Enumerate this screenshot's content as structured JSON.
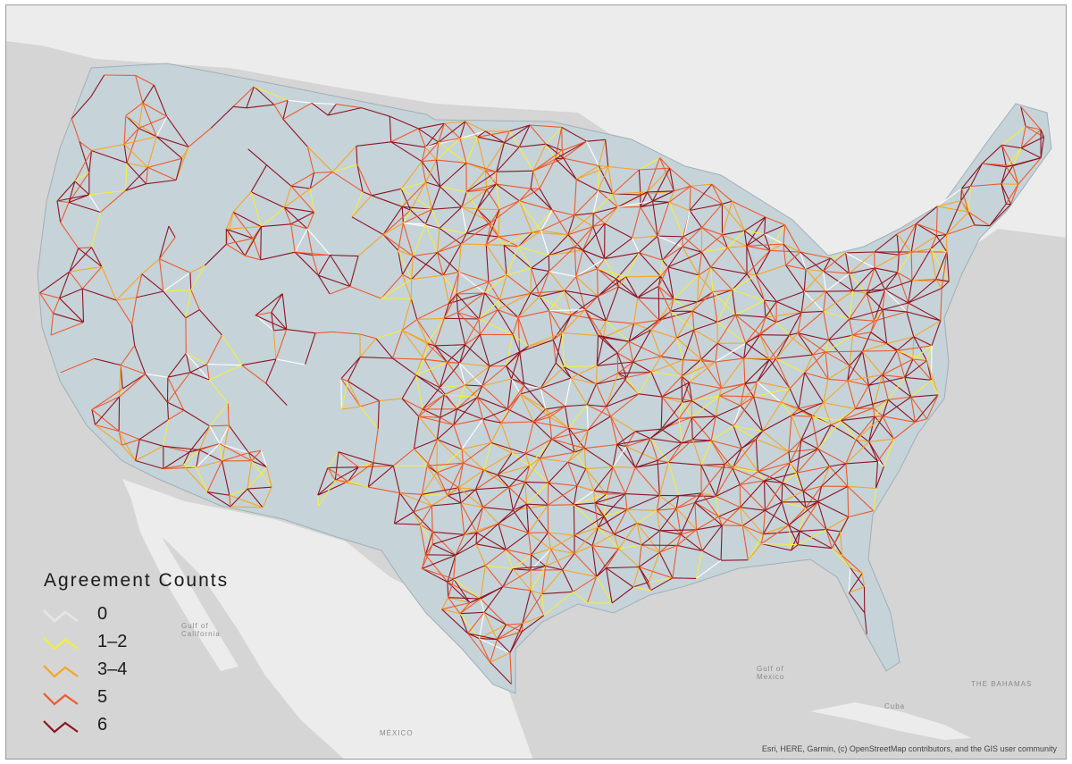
{
  "legend": {
    "title": "Agreement  Counts",
    "items": [
      {
        "label": "0",
        "color": "#ffffff"
      },
      {
        "label": "1–2",
        "color": "#f2ef3a"
      },
      {
        "label": "3–4",
        "color": "#f5a623"
      },
      {
        "label": "5",
        "color": "#ee5a2b"
      },
      {
        "label": "6",
        "color": "#8e1422"
      }
    ]
  },
  "attribution": "Esri, HERE, Garmin, (c) OpenStreetMap contributors, and the GIS user community",
  "places": {
    "mexico": "MÉXICO",
    "gulf_california": "Gulf of California",
    "gulf_mexico": "Gulf of Mexico",
    "bahamas": "THE BAHAMAS",
    "cuba": "Cuba"
  },
  "colors": {
    "land_us": "#c6d3d9",
    "land_other": "#ececec",
    "water": "#d3d3d3"
  }
}
